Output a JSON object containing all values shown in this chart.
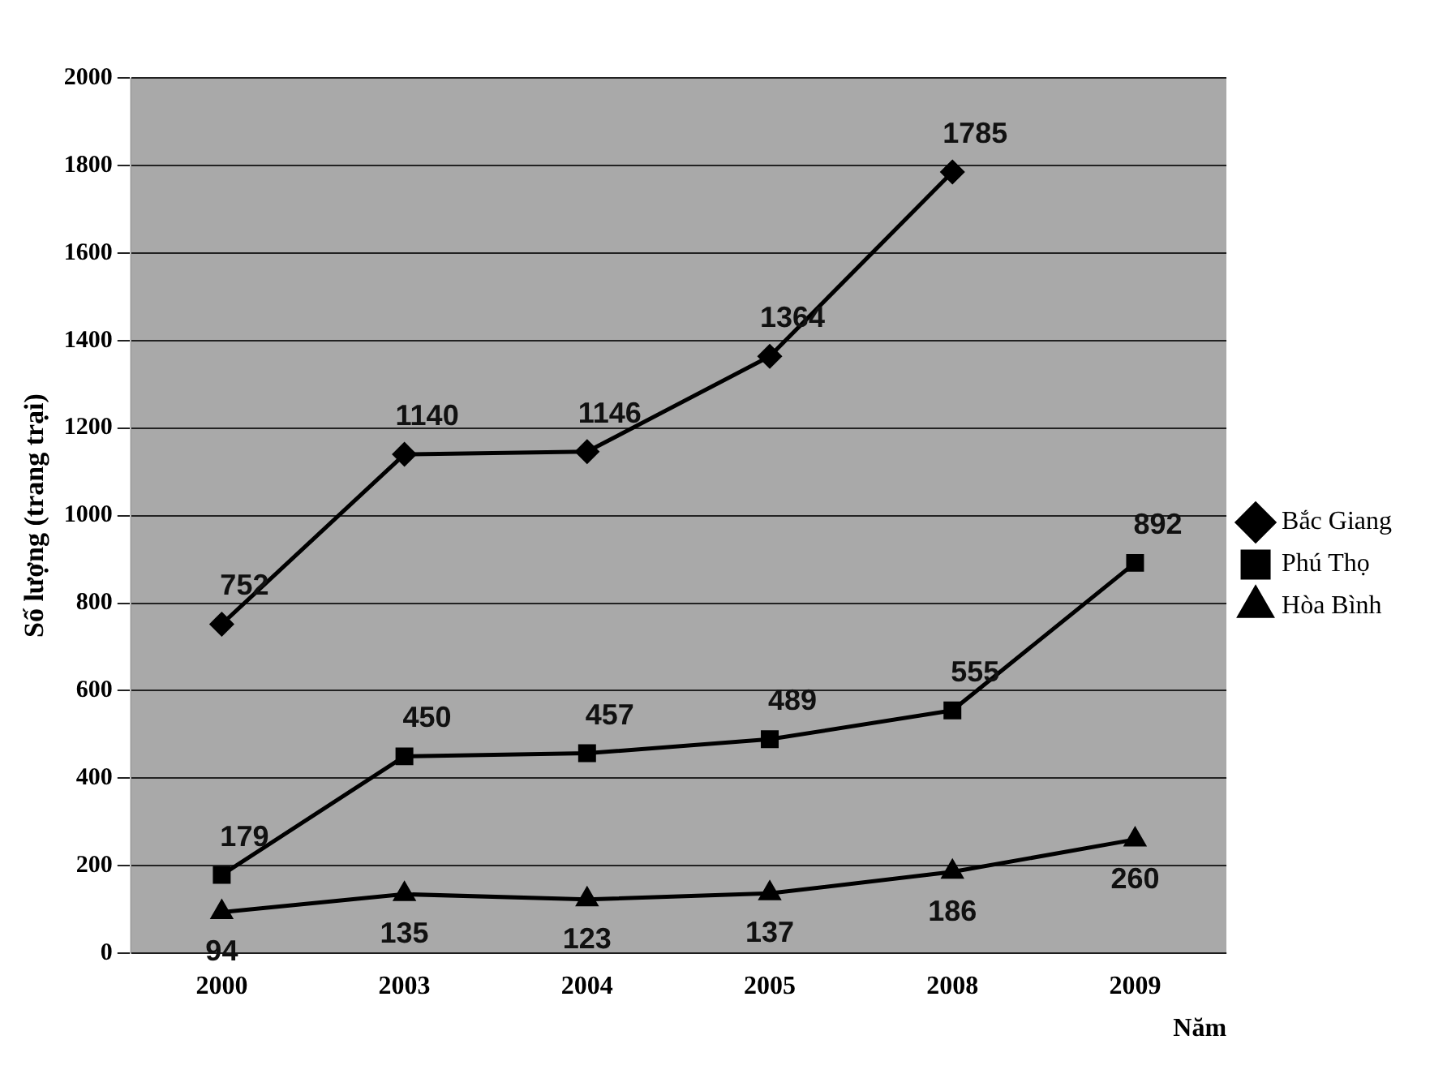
{
  "chart_data": {
    "type": "line",
    "xlabel": "Năm",
    "ylabel": "Số lượng (trang trại)",
    "categories": [
      "2000",
      "2003",
      "2004",
      "2005",
      "2008",
      "2009"
    ],
    "series": [
      {
        "name": "Bắc Giang",
        "color": "#000000",
        "marker": "diamond",
        "values": [
          752,
          1140,
          1146,
          1364,
          1785,
          null
        ]
      },
      {
        "name": "Phú Thọ",
        "color": "#000000",
        "marker": "square",
        "values": [
          179,
          450,
          457,
          489,
          555,
          892
        ]
      },
      {
        "name": "Hòa Bình",
        "color": "#000000",
        "marker": "triangle",
        "values": [
          94,
          135,
          123,
          137,
          186,
          260
        ]
      }
    ],
    "ylim": [
      0,
      2000
    ],
    "yticks": [
      0,
      200,
      400,
      600,
      800,
      1000,
      1200,
      1400,
      1600,
      1800,
      2000
    ],
    "grid": "y",
    "legend": "right",
    "data_labels": true
  }
}
